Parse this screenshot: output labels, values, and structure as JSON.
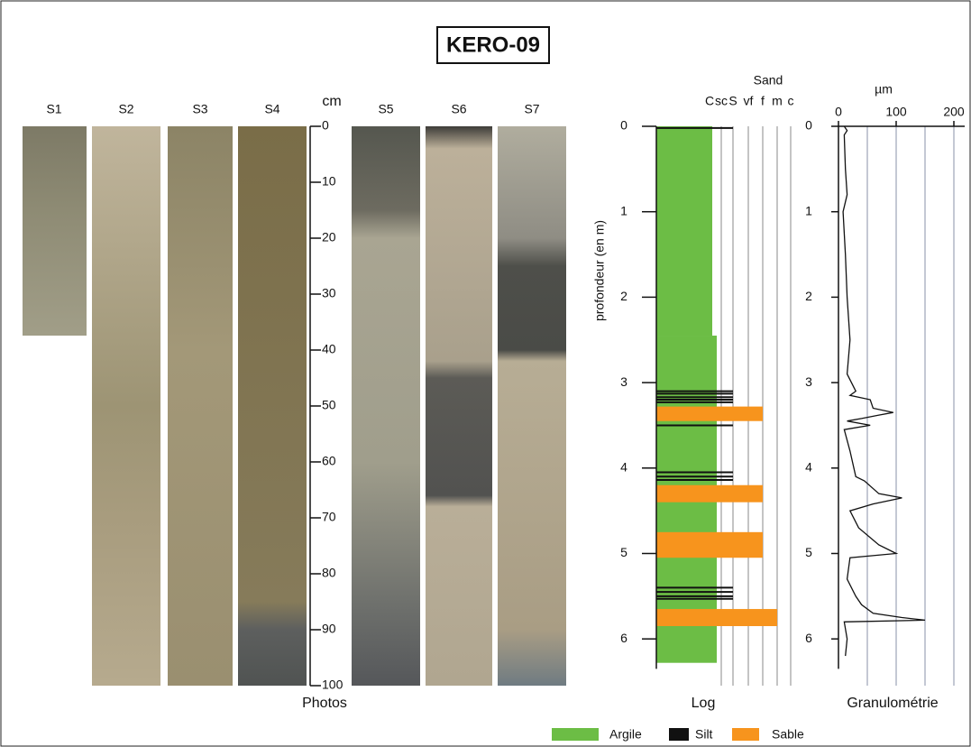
{
  "title": "KERO-09",
  "photos": {
    "label": "Photos",
    "sections": [
      "S1",
      "S2",
      "S3",
      "S4",
      "S5",
      "S6",
      "S7"
    ],
    "scale_title": "cm",
    "scale_lim": [
      0,
      100
    ],
    "scale_ticks": [
      0,
      10,
      20,
      30,
      40,
      50,
      60,
      70,
      80,
      90,
      100
    ]
  },
  "log": {
    "label": "Log",
    "axis_title": "profondeur (en m)",
    "depth_lim": [
      0,
      6.35
    ],
    "depth_ticks": [
      0,
      1,
      2,
      3,
      4,
      5,
      6
    ],
    "grain_header": "Sand",
    "grain_classes": [
      "C",
      "sc",
      "S",
      "vf",
      "f",
      "m",
      "c"
    ],
    "clay_layers": [
      {
        "top": 0,
        "bottom": 2.45,
        "class": 0
      },
      {
        "top": 2.45,
        "bottom": 6.28,
        "class": 0.5
      }
    ],
    "silt_depths": [
      0.02,
      3.1,
      3.13,
      3.17,
      3.2,
      3.23,
      3.5,
      4.05,
      4.1,
      4.14,
      5.4,
      5.45,
      5.5,
      5.53
    ],
    "sand_layers": [
      {
        "top": 3.28,
        "bottom": 3.45,
        "class": 4
      },
      {
        "top": 4.2,
        "bottom": 4.4,
        "class": 4
      },
      {
        "top": 4.75,
        "bottom": 5.05,
        "class": 4
      },
      {
        "top": 5.65,
        "bottom": 5.85,
        "class": 5
      }
    ]
  },
  "granulometry": {
    "label": "Granulométrie",
    "unit": "µm",
    "xlim": [
      0,
      200
    ],
    "xticks": [
      0,
      100,
      200
    ],
    "gridlines": [
      50,
      100,
      150,
      200
    ],
    "depth_lim": [
      0,
      6.35
    ],
    "depth_ticks": [
      0,
      1,
      2,
      3,
      4,
      5,
      6
    ],
    "depth": [
      0,
      0.05,
      0.1,
      0.5,
      0.8,
      1.0,
      1.5,
      2.0,
      2.5,
      2.9,
      3.1,
      3.15,
      3.2,
      3.3,
      3.35,
      3.38,
      3.42,
      3.45,
      3.5,
      3.55,
      3.8,
      4.1,
      4.15,
      4.3,
      4.35,
      4.42,
      4.5,
      4.7,
      4.9,
      5.0,
      5.05,
      5.3,
      5.5,
      5.6,
      5.7,
      5.75,
      5.78,
      5.8,
      6.0,
      6.2
    ],
    "size": [
      10,
      15,
      10,
      12,
      15,
      8,
      12,
      15,
      20,
      15,
      30,
      20,
      55,
      60,
      95,
      70,
      40,
      15,
      55,
      10,
      20,
      30,
      45,
      70,
      110,
      60,
      20,
      35,
      70,
      100,
      20,
      15,
      30,
      40,
      60,
      110,
      150,
      10,
      15,
      12
    ]
  },
  "legend": [
    {
      "name": "Argile",
      "color": "#6cbd45"
    },
    {
      "name": "Silt",
      "color": "#111111"
    },
    {
      "name": "Sable",
      "color": "#f7941d"
    }
  ]
}
